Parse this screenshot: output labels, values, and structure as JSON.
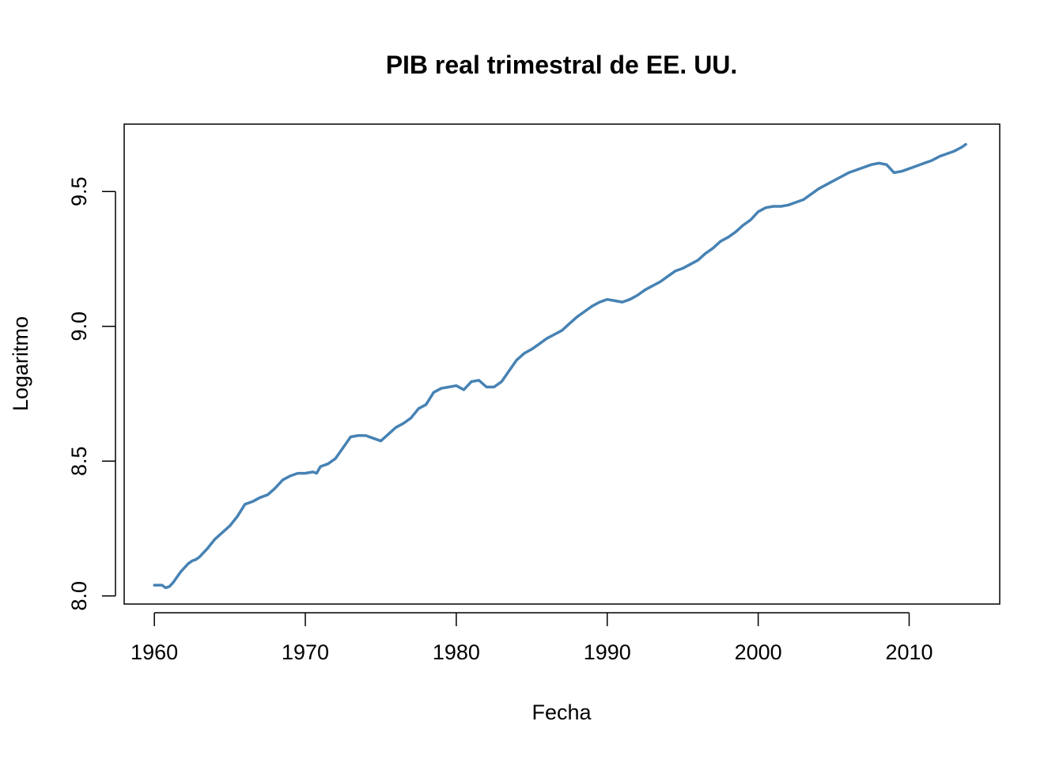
{
  "chart_data": {
    "type": "line",
    "title": "PIB real trimestral de EE. UU.",
    "xlabel": "Fecha",
    "ylabel": "Logaritmo",
    "xlim": [
      1958,
      2016
    ],
    "ylim": [
      7.97,
      9.75
    ],
    "x_ticks": [
      1960,
      1970,
      1980,
      1990,
      2000,
      2010
    ],
    "x_tick_labels": [
      "1960",
      "1970",
      "1980",
      "1990",
      "2000",
      "2010"
    ],
    "y_ticks": [
      8.0,
      8.5,
      9.0,
      9.5
    ],
    "y_tick_labels": [
      "8.0",
      "8.5",
      "9.0",
      "9.5"
    ],
    "grid": false,
    "line_color": "#4682B4",
    "series": [
      {
        "x": [
          1960.0,
          1960.5,
          1960.75,
          1961.0,
          1961.25,
          1961.5,
          1961.75,
          1962.0,
          1962.25,
          1962.5,
          1962.75,
          1963.0,
          1963.5,
          1964.0,
          1964.5,
          1965.0,
          1965.5,
          1966.0,
          1966.5,
          1967.0,
          1967.5,
          1968.0,
          1968.5,
          1969.0,
          1969.5,
          1970.0,
          1970.5,
          1970.75,
          1971.0,
          1971.5,
          1972.0,
          1972.5,
          1973.0,
          1973.5,
          1974.0,
          1974.5,
          1975.0,
          1975.5,
          1976.0,
          1976.5,
          1977.0,
          1977.5,
          1978.0,
          1978.5,
          1979.0,
          1979.5,
          1980.0,
          1980.5,
          1981.0,
          1981.5,
          1982.0,
          1982.5,
          1983.0,
          1983.5,
          1984.0,
          1984.5,
          1985.0,
          1985.5,
          1986.0,
          1986.5,
          1987.0,
          1987.5,
          1988.0,
          1988.5,
          1989.0,
          1989.5,
          1990.0,
          1990.5,
          1991.0,
          1991.5,
          1992.0,
          1992.5,
          1993.0,
          1993.5,
          1994.0,
          1994.5,
          1995.0,
          1995.5,
          1996.0,
          1996.5,
          1997.0,
          1997.5,
          1998.0,
          1998.5,
          1999.0,
          1999.5,
          2000.0,
          2000.5,
          2001.0,
          2001.5,
          2002.0,
          2002.5,
          2003.0,
          2003.5,
          2004.0,
          2004.5,
          2005.0,
          2005.5,
          2006.0,
          2006.5,
          2007.0,
          2007.5,
          2008.0,
          2008.5,
          2009.0,
          2009.5,
          2010.0,
          2010.5,
          2011.0,
          2011.5,
          2012.0,
          2012.5,
          2013.0,
          2013.5,
          2013.75
        ],
        "values": [
          8.04,
          8.04,
          8.03,
          8.035,
          8.05,
          8.07,
          8.09,
          8.105,
          8.12,
          8.13,
          8.135,
          8.145,
          8.175,
          8.21,
          8.235,
          8.26,
          8.295,
          8.34,
          8.35,
          8.365,
          8.375,
          8.4,
          8.43,
          8.445,
          8.455,
          8.455,
          8.46,
          8.455,
          8.48,
          8.49,
          8.51,
          8.55,
          8.59,
          8.595,
          8.595,
          8.585,
          8.575,
          8.6,
          8.625,
          8.64,
          8.66,
          8.695,
          8.71,
          8.755,
          8.77,
          8.775,
          8.78,
          8.765,
          8.795,
          8.8,
          8.775,
          8.775,
          8.795,
          8.835,
          8.875,
          8.9,
          8.915,
          8.935,
          8.955,
          8.97,
          8.985,
          9.01,
          9.035,
          9.055,
          9.075,
          9.09,
          9.1,
          9.095,
          9.09,
          9.1,
          9.115,
          9.135,
          9.15,
          9.165,
          9.185,
          9.205,
          9.215,
          9.23,
          9.245,
          9.27,
          9.29,
          9.315,
          9.33,
          9.35,
          9.375,
          9.395,
          9.425,
          9.44,
          9.445,
          9.445,
          9.45,
          9.46,
          9.47,
          9.49,
          9.51,
          9.525,
          9.54,
          9.555,
          9.57,
          9.58,
          9.59,
          9.6,
          9.605,
          9.6,
          9.57,
          9.575,
          9.585,
          9.595,
          9.605,
          9.615,
          9.63,
          9.64,
          9.65,
          9.665,
          9.675
        ]
      }
    ]
  }
}
